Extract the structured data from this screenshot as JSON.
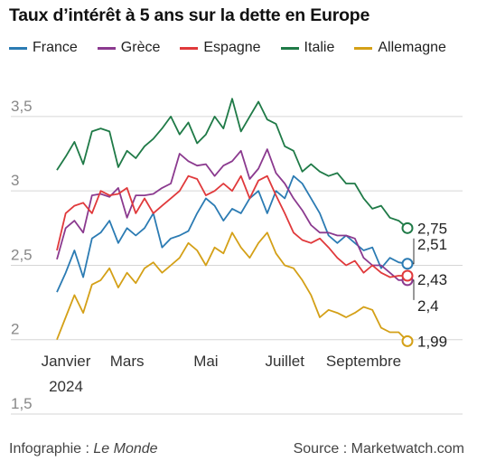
{
  "title": "Taux d’intérêt à 5 ans sur la dette en Europe",
  "credit_label": "Infographie : ",
  "credit_outlet": "Le Monde",
  "source": "Source : Marketwatch.com",
  "chart_data": {
    "type": "line",
    "title": "Taux d’intérêt à 5 ans sur la dette en Europe",
    "xlabel": "",
    "ylabel": "",
    "x_tick_labels": [
      "Janvier",
      "Mars",
      "Mai",
      "Juillet",
      "Septembre"
    ],
    "x_tick_positions": [
      0,
      8,
      17,
      26,
      35
    ],
    "x_year_label": "2024",
    "y_tick_labels": [
      "3,5",
      "3",
      "2,5",
      "2",
      "1,5"
    ],
    "y_tick_values": [
      3.5,
      3.0,
      2.5,
      2.0,
      1.5
    ],
    "ylim": [
      1.5,
      3.7
    ],
    "xlim": [
      0,
      40
    ],
    "grid": "horizontal",
    "legend_position": "top",
    "series": [
      {
        "name": "France",
        "color": "#2b7bb3",
        "end_label": "2,51",
        "values": [
          2.32,
          2.45,
          2.6,
          2.42,
          2.68,
          2.72,
          2.8,
          2.65,
          2.75,
          2.7,
          2.75,
          2.85,
          2.62,
          2.68,
          2.7,
          2.73,
          2.85,
          2.95,
          2.9,
          2.8,
          2.88,
          2.85,
          2.95,
          3.0,
          2.85,
          3.0,
          2.95,
          3.1,
          3.05,
          2.95,
          2.85,
          2.7,
          2.65,
          2.7,
          2.65,
          2.6,
          2.62,
          2.48,
          2.55,
          2.52,
          2.51
        ]
      },
      {
        "name": "Grèce",
        "color": "#8b3a8f",
        "end_label": "2,4",
        "values": [
          2.54,
          2.75,
          2.8,
          2.72,
          2.97,
          2.98,
          2.96,
          3.02,
          2.82,
          2.97,
          2.97,
          2.98,
          3.02,
          3.05,
          3.25,
          3.2,
          3.17,
          3.18,
          3.1,
          3.17,
          3.2,
          3.27,
          3.08,
          3.15,
          3.28,
          3.12,
          3.05,
          2.95,
          2.87,
          2.77,
          2.72,
          2.72,
          2.7,
          2.7,
          2.68,
          2.55,
          2.5,
          2.5,
          2.45,
          2.4,
          2.4
        ]
      },
      {
        "name": "Espagne",
        "color": "#e0393b",
        "end_label": "2,43",
        "values": [
          2.6,
          2.85,
          2.9,
          2.92,
          2.85,
          3.0,
          2.97,
          2.98,
          3.02,
          2.85,
          2.95,
          2.85,
          2.9,
          2.95,
          3.0,
          3.1,
          3.08,
          2.97,
          3.0,
          3.05,
          3.0,
          3.1,
          2.95,
          3.07,
          3.1,
          2.97,
          2.85,
          2.72,
          2.67,
          2.65,
          2.68,
          2.62,
          2.55,
          2.5,
          2.53,
          2.45,
          2.5,
          2.45,
          2.42,
          2.43,
          2.43
        ]
      },
      {
        "name": "Italie",
        "color": "#1f7a47",
        "end_label": "2,75",
        "values": [
          3.14,
          3.23,
          3.33,
          3.18,
          3.4,
          3.42,
          3.4,
          3.16,
          3.27,
          3.22,
          3.3,
          3.35,
          3.42,
          3.5,
          3.38,
          3.46,
          3.32,
          3.38,
          3.5,
          3.42,
          3.62,
          3.4,
          3.5,
          3.6,
          3.48,
          3.45,
          3.3,
          3.27,
          3.13,
          3.18,
          3.13,
          3.1,
          3.12,
          3.05,
          3.05,
          2.95,
          2.88,
          2.9,
          2.82,
          2.8,
          2.75
        ]
      },
      {
        "name": "Allemagne",
        "color": "#d4a017",
        "end_label": "1,99",
        "values": [
          2.0,
          2.15,
          2.3,
          2.18,
          2.37,
          2.4,
          2.48,
          2.35,
          2.45,
          2.38,
          2.48,
          2.52,
          2.45,
          2.5,
          2.55,
          2.65,
          2.6,
          2.5,
          2.62,
          2.58,
          2.72,
          2.62,
          2.55,
          2.65,
          2.72,
          2.58,
          2.5,
          2.48,
          2.4,
          2.3,
          2.15,
          2.2,
          2.18,
          2.15,
          2.18,
          2.22,
          2.2,
          2.08,
          2.05,
          2.05,
          1.99
        ]
      }
    ]
  }
}
